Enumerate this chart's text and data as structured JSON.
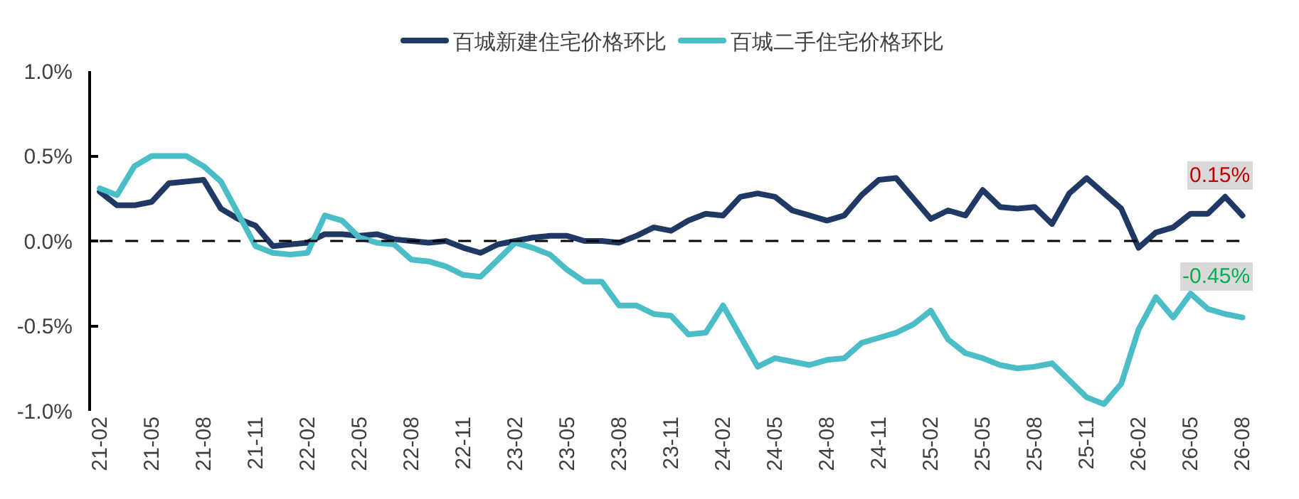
{
  "chart_data": {
    "type": "line",
    "categories": [
      "21-02",
      null,
      null,
      "21-05",
      null,
      null,
      "21-08",
      null,
      null,
      "21-11",
      null,
      null,
      "22-02",
      null,
      null,
      "22-05",
      null,
      null,
      "22-08",
      null,
      null,
      "22-11",
      null,
      null,
      "23-02",
      null,
      null,
      "23-05",
      null,
      null,
      "23-08",
      null,
      null,
      "23-11",
      null,
      null,
      "24-02",
      null,
      null,
      "24-05",
      null,
      null,
      "24-08",
      null,
      null,
      "24-11",
      null,
      null,
      "25-02",
      null,
      null,
      "25-05",
      null,
      null,
      "25-08",
      null,
      null,
      "25-11",
      null,
      null,
      "26-02",
      null,
      null,
      "26-05",
      null,
      null,
      "26-08"
    ],
    "series": [
      {
        "name": "百城新建住宅价格环比",
        "color": "#203864",
        "values": [
          0.29,
          0.21,
          0.21,
          0.23,
          0.34,
          0.35,
          0.36,
          0.19,
          0.13,
          0.09,
          -0.03,
          -0.02,
          -0.01,
          0.04,
          0.04,
          0.03,
          0.04,
          0.01,
          0.0,
          -0.01,
          0.0,
          -0.04,
          -0.07,
          -0.02,
          0.0,
          0.02,
          0.03,
          0.03,
          0.0,
          0.0,
          -0.01,
          0.03,
          0.08,
          0.06,
          0.12,
          0.16,
          0.15,
          0.26,
          0.28,
          0.26,
          0.18,
          0.15,
          0.12,
          0.15,
          0.27,
          0.36,
          0.37,
          0.25,
          0.13,
          0.18,
          0.15,
          0.3,
          0.2,
          0.19,
          0.2,
          0.1,
          0.28,
          0.37,
          0.28,
          0.19,
          -0.04,
          0.05,
          0.08,
          0.16,
          0.16,
          0.26,
          0.15
        ]
      },
      {
        "name": "百城二手住宅价格环比",
        "color": "#4bbdc6",
        "values": [
          0.31,
          0.27,
          0.44,
          0.5,
          0.5,
          0.5,
          0.44,
          0.35,
          0.16,
          -0.03,
          -0.07,
          -0.08,
          -0.07,
          0.15,
          0.12,
          0.02,
          -0.01,
          -0.02,
          -0.11,
          -0.12,
          -0.15,
          -0.2,
          -0.21,
          -0.11,
          -0.01,
          -0.04,
          -0.08,
          -0.17,
          -0.24,
          -0.24,
          -0.38,
          -0.38,
          -0.43,
          -0.44,
          -0.55,
          -0.54,
          -0.38,
          -0.56,
          -0.74,
          -0.69,
          -0.71,
          -0.73,
          -0.7,
          -0.69,
          -0.6,
          -0.57,
          -0.54,
          -0.49,
          -0.41,
          -0.58,
          -0.66,
          -0.69,
          -0.73,
          -0.75,
          -0.74,
          -0.72,
          -0.82,
          -0.92,
          -0.96,
          -0.84,
          -0.52,
          -0.33,
          -0.45,
          -0.31,
          -0.4,
          -0.43,
          -0.45
        ]
      }
    ],
    "ylim": [
      -1,
      1
    ],
    "yticks": [
      {
        "value": 1,
        "label": "1.0%"
      },
      {
        "value": 0.5,
        "label": "0.5%"
      },
      {
        "value": 0,
        "label": "0.0%"
      },
      {
        "value": -0.5,
        "label": "-0.5%"
      },
      {
        "value": -1,
        "label": "-1.0%"
      }
    ],
    "ref_lines": [
      {
        "axis": "y",
        "value": 0,
        "color": "#000000",
        "line_style": "dashed"
      }
    ],
    "annotations": [
      {
        "text": "0.15%",
        "x": "26-08",
        "y": 0.15
      },
      {
        "text": "-0.45%",
        "x": "26-08",
        "y": -0.45
      }
    ],
    "legend": "top",
    "marker": "none",
    "line_style": "solid"
  }
}
